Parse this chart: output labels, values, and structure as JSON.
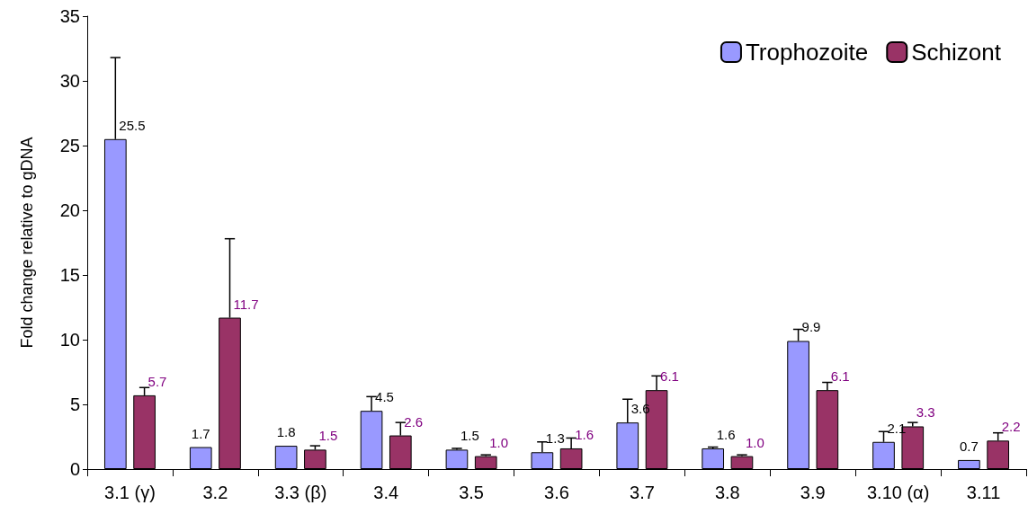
{
  "chart_data": {
    "type": "bar",
    "ylabel": "Fold change relative to gDNA",
    "categories": [
      "3.1 (γ)",
      "3.2",
      "3.3 (β)",
      "3.4",
      "3.5",
      "3.6",
      "3.7",
      "3.8",
      "3.9",
      "3.10 (α)",
      "3.11"
    ],
    "series": [
      {
        "name": "Trophozoite",
        "color": "#9999ff",
        "values": [
          25.5,
          1.7,
          1.8,
          4.5,
          1.5,
          1.3,
          3.6,
          1.6,
          9.9,
          2.1,
          0.7
        ],
        "value_labels": [
          "25.5",
          "1.7",
          "1.8",
          "4.5",
          "1.5",
          "1.3",
          "3.6",
          "1.6",
          "9.9",
          "2.1",
          "0.7"
        ],
        "errors": [
          [
            25.5,
            31.8
          ],
          null,
          null,
          [
            4.5,
            5.6
          ],
          [
            1.5,
            1.6
          ],
          [
            1.3,
            2.1
          ],
          [
            3.6,
            5.4
          ],
          [
            1.6,
            1.7
          ],
          [
            9.9,
            10.8
          ],
          [
            2.1,
            2.9
          ],
          null
        ]
      },
      {
        "name": "Schizont",
        "color": "#993366",
        "values": [
          5.7,
          11.7,
          1.5,
          2.6,
          1.0,
          1.6,
          6.1,
          1.0,
          6.1,
          3.3,
          2.2
        ],
        "value_labels": [
          "5.7",
          "11.7",
          "1.5",
          "2.6",
          "1.0",
          "1.6",
          "6.1",
          "1.0",
          "6.1",
          "3.3",
          "2.2"
        ],
        "errors": [
          [
            5.7,
            6.3
          ],
          [
            11.7,
            17.8
          ],
          [
            1.5,
            1.8
          ],
          [
            2.6,
            3.6
          ],
          [
            1.0,
            1.1
          ],
          [
            1.6,
            2.4
          ],
          [
            6.1,
            7.2
          ],
          [
            1.0,
            1.1
          ],
          [
            6.1,
            6.7
          ],
          [
            3.3,
            3.6
          ],
          [
            2.2,
            2.8
          ]
        ]
      }
    ],
    "ylim": [
      0,
      35
    ],
    "yticks": [
      0,
      5,
      10,
      15,
      20,
      25,
      30,
      35
    ],
    "grid": false,
    "legend": "top right"
  }
}
